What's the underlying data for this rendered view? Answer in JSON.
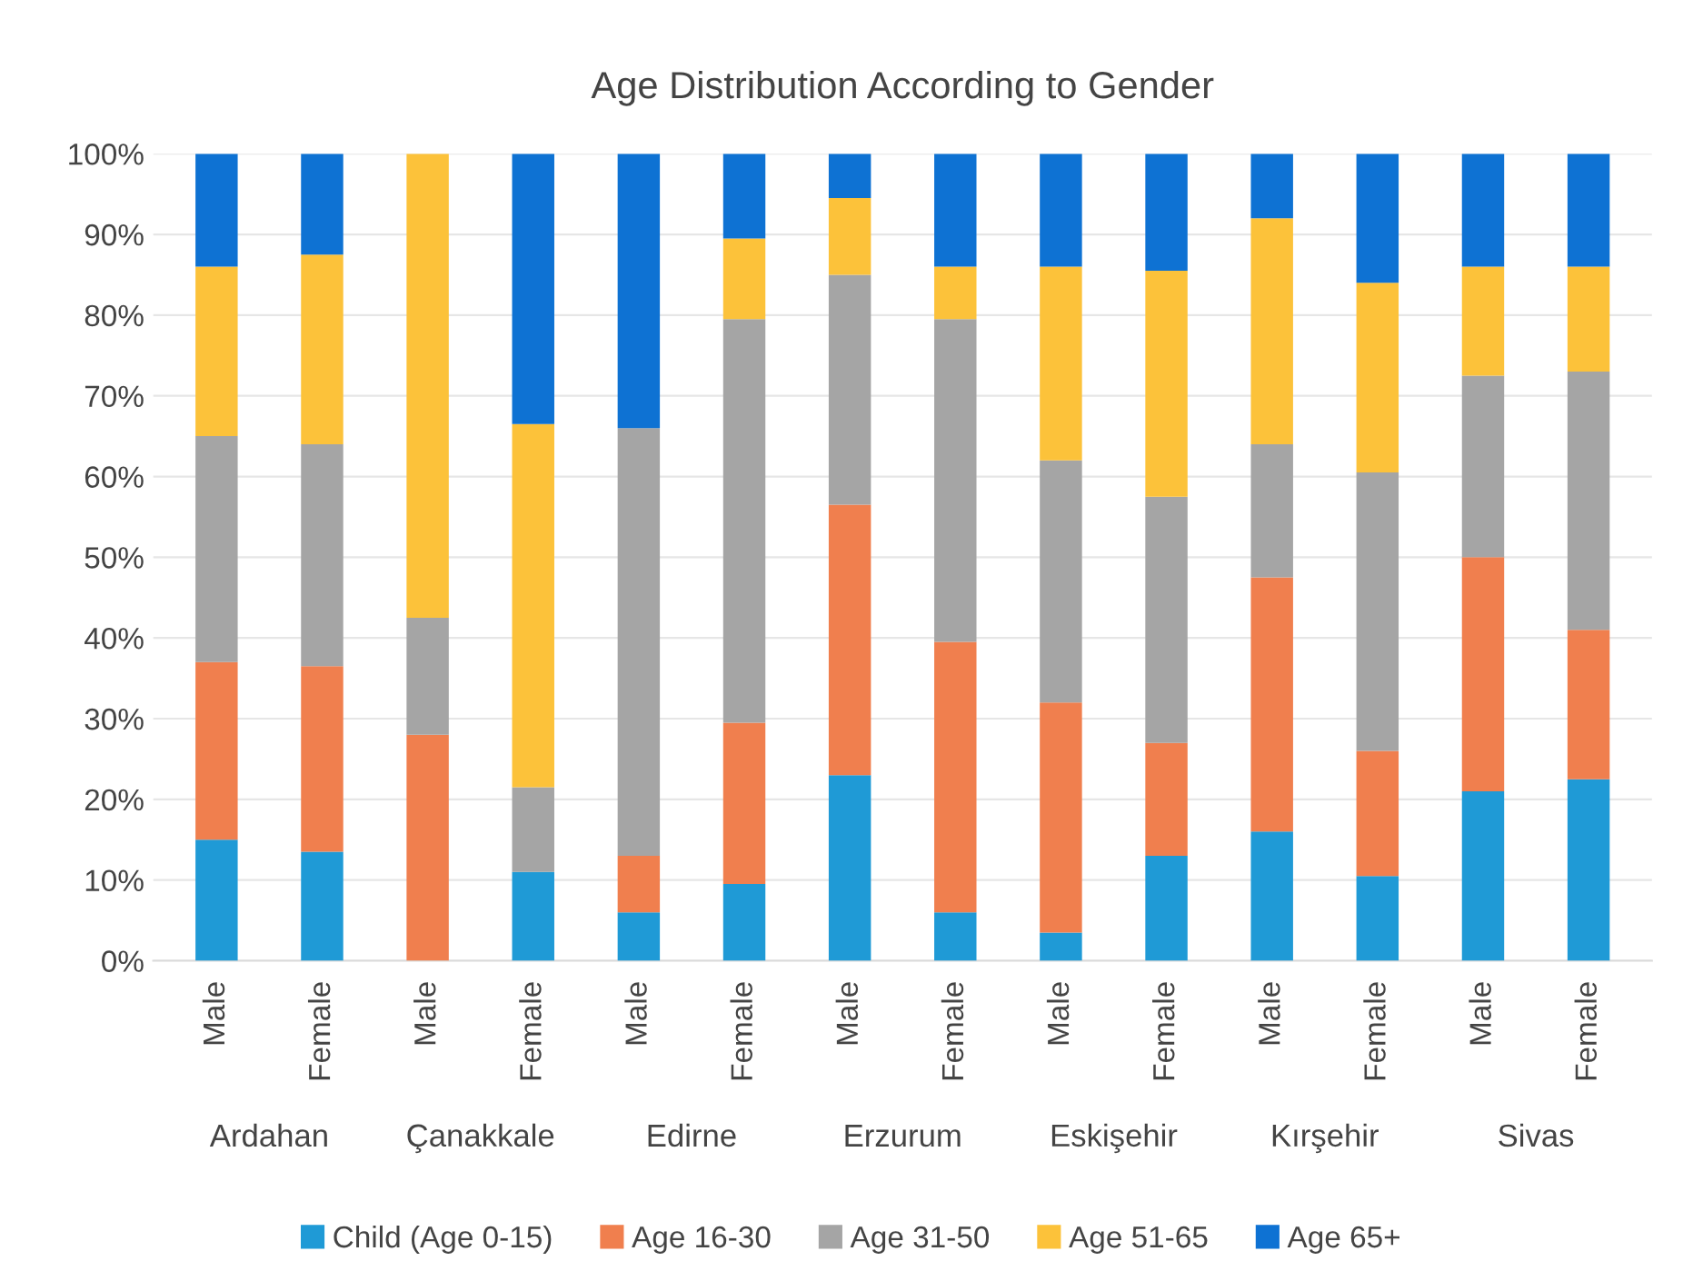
{
  "chart_data": {
    "type": "bar",
    "title": "Age Distribution According to Gender",
    "stacked": true,
    "categories": [
      "Male",
      "Female",
      "Male",
      "Female",
      "Male",
      "Female",
      "Male",
      "Female",
      "Male",
      "Female",
      "Male",
      "Female",
      "Male",
      "Female"
    ],
    "annotations": [
      "Ardahan",
      "Çanakkale",
      "Edirne",
      "Erzurum",
      "Eskişehir",
      "Kırşehir",
      "Sivas"
    ],
    "series": [
      {
        "name": "Child (Age 0-15)",
        "color": "#1f9ad6",
        "values": [
          15,
          13.5,
          0,
          11,
          6,
          9.5,
          23,
          6,
          3.5,
          13,
          16,
          10.5,
          21,
          22.5
        ]
      },
      {
        "name": "Age 16-30",
        "color": "#f07f4e",
        "values": [
          22,
          23,
          28,
          0,
          7,
          20,
          33.5,
          33.5,
          28.5,
          14,
          31.5,
          15.5,
          29,
          18.5
        ]
      },
      {
        "name": "Age 31-50",
        "color": "#a5a5a5",
        "values": [
          28,
          27.5,
          14.5,
          10.5,
          53,
          50,
          28.5,
          40,
          30,
          30.5,
          16.5,
          34.5,
          22.5,
          32
        ]
      },
      {
        "name": "Age 51-65",
        "color": "#fcc23a",
        "values": [
          21,
          23.5,
          57.5,
          45,
          0,
          10,
          9.5,
          6.5,
          24,
          28,
          28,
          23.5,
          13.5,
          13
        ]
      },
      {
        "name": "Age 65+",
        "color": "#0e72d3",
        "values": [
          14,
          12.5,
          0,
          33.5,
          34,
          10.5,
          5.5,
          14,
          14,
          14.5,
          8,
          16,
          14,
          14
        ]
      }
    ],
    "ylim": [
      0,
      100
    ],
    "yticks": [
      {
        "value": 0,
        "label": "0%"
      },
      {
        "value": 10,
        "label": "10%"
      },
      {
        "value": 20,
        "label": "20%"
      },
      {
        "value": 30,
        "label": "30%"
      },
      {
        "value": 40,
        "label": "40%"
      },
      {
        "value": 50,
        "label": "50%"
      },
      {
        "value": 60,
        "label": "60%"
      },
      {
        "value": 70,
        "label": "70%"
      },
      {
        "value": 80,
        "label": "80%"
      },
      {
        "value": 90,
        "label": "90%"
      },
      {
        "value": 100,
        "label": "100%"
      }
    ],
    "grid": "y",
    "legend": "bottom"
  }
}
